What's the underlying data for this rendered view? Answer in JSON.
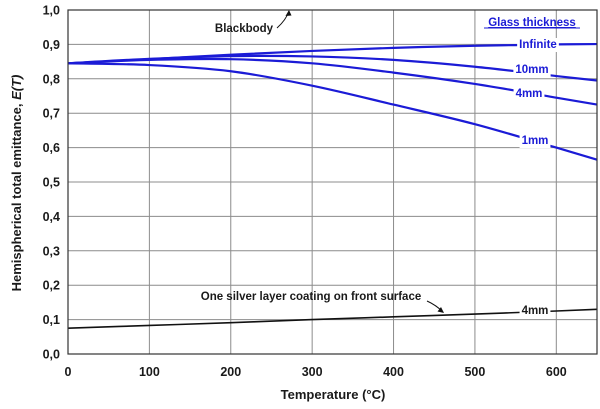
{
  "colors": {
    "blue": "#1b1bd6",
    "black": "#111111",
    "grid": "#8c8c8c"
  },
  "chart_data": {
    "type": "line",
    "xlabel": "Temperature (°C)",
    "ylabel_main": "Hemispherical total emittance,",
    "ylabel_italic": "E(T)",
    "xlim": [
      0,
      650
    ],
    "ylim": [
      0,
      1.0
    ],
    "x_ticks": [
      "0",
      "100",
      "200",
      "300",
      "400",
      "500",
      "600"
    ],
    "y_ticks": [
      "0,0",
      "0,1",
      "0,2",
      "0,3",
      "0,4",
      "0,5",
      "0,6",
      "0,7",
      "0,8",
      "0,9",
      "1,0"
    ],
    "grid": true,
    "legend_title": "Glass thickness",
    "series": [
      {
        "name": "Infinite",
        "color": "#1b1bd6",
        "x": [
          0,
          100,
          200,
          300,
          400,
          500,
          550,
          600,
          650
        ],
        "y": [
          0.845,
          0.857,
          0.87,
          0.881,
          0.89,
          0.896,
          0.898,
          0.9,
          0.901
        ]
      },
      {
        "name": "10mm",
        "color": "#1b1bd6",
        "x": [
          0,
          100,
          200,
          300,
          400,
          500,
          600,
          650
        ],
        "y": [
          0.845,
          0.858,
          0.866,
          0.865,
          0.855,
          0.835,
          0.808,
          0.795
        ]
      },
      {
        "name": "4mm",
        "color": "#1b1bd6",
        "x": [
          0,
          100,
          200,
          300,
          400,
          500,
          600,
          650
        ],
        "y": [
          0.845,
          0.855,
          0.857,
          0.845,
          0.818,
          0.785,
          0.745,
          0.725
        ]
      },
      {
        "name": "1mm",
        "color": "#1b1bd6",
        "x": [
          0,
          100,
          200,
          300,
          400,
          500,
          600,
          650
        ],
        "y": [
          0.845,
          0.84,
          0.822,
          0.78,
          0.725,
          0.668,
          0.6,
          0.565
        ]
      },
      {
        "name": "4mm",
        "color": "#111111",
        "x": [
          0,
          100,
          200,
          300,
          400,
          500,
          600,
          650
        ],
        "y": [
          0.075,
          0.083,
          0.091,
          0.1,
          0.108,
          0.116,
          0.125,
          0.13
        ]
      }
    ],
    "annotations": [
      {
        "text": "Blackbody",
        "style": "black"
      },
      {
        "text": "One silver layer coating on front surface",
        "style": "black"
      }
    ]
  }
}
